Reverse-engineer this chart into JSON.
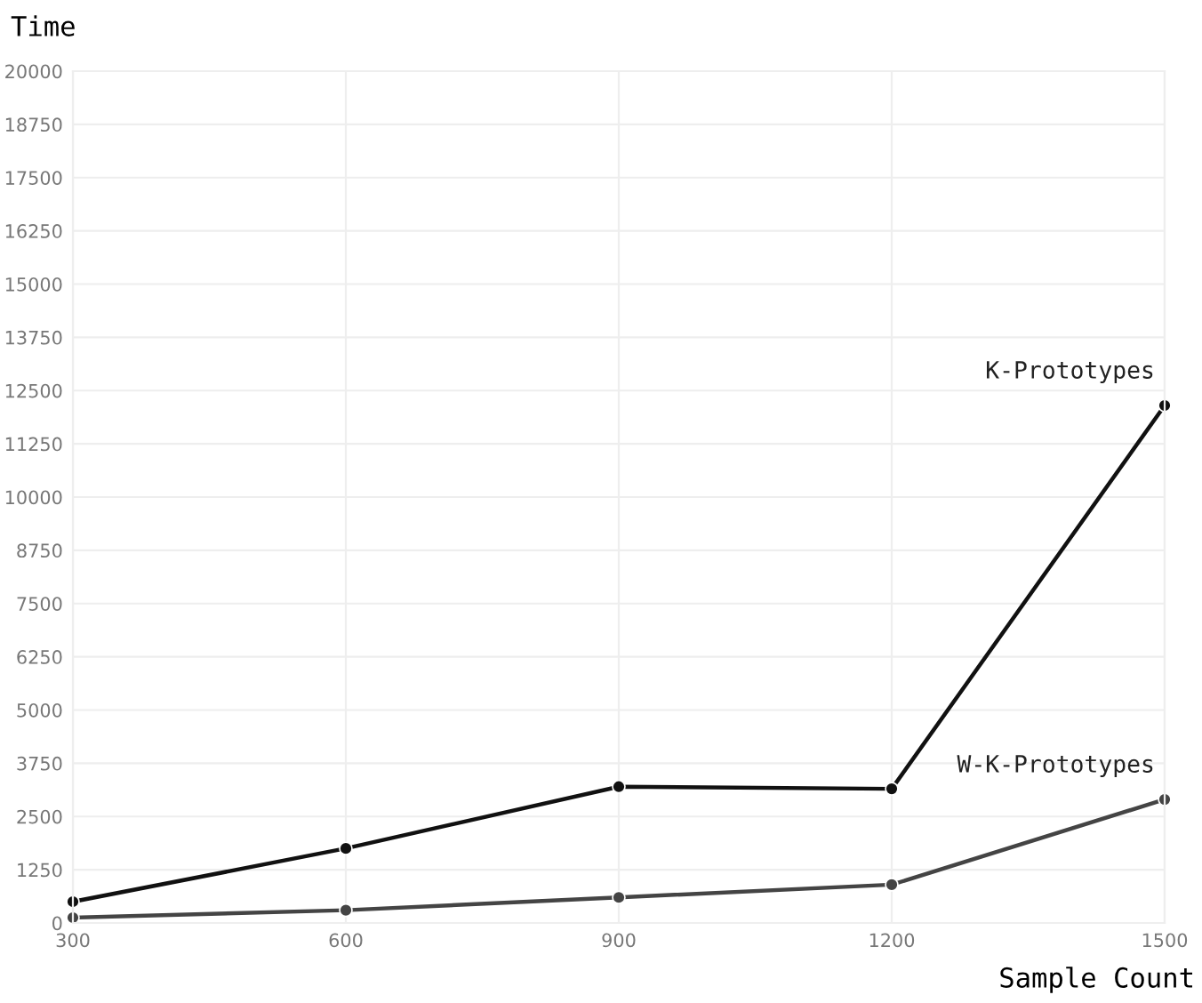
{
  "chart_data": {
    "type": "line",
    "xlabel": "Sample Count",
    "ylabel": "Time",
    "x": [
      300,
      600,
      900,
      1200,
      1500
    ],
    "series": [
      {
        "name": "K-Prototypes",
        "color": "#111111",
        "values": [
          500,
          1750,
          3200,
          3150,
          12150
        ]
      },
      {
        "name": "W-K-Prototypes",
        "color": "#444444",
        "values": [
          125,
          300,
          600,
          900,
          2900
        ]
      }
    ],
    "xlim": [
      300,
      1500
    ],
    "xticks": [
      300,
      600,
      900,
      1200,
      1500
    ],
    "ylim": [
      0,
      20000
    ],
    "yticks": [
      0,
      1250,
      2500,
      3750,
      5000,
      6250,
      7500,
      8750,
      10000,
      11250,
      12500,
      13750,
      15000,
      16250,
      17500,
      18750,
      20000
    ],
    "grid": true,
    "marker": "circle",
    "line_style": "solid",
    "legend": false
  }
}
